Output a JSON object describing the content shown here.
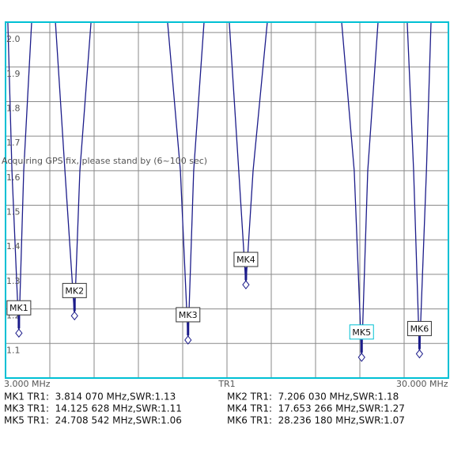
{
  "chart_data": {
    "type": "line",
    "xlim": [
      3,
      30
    ],
    "ylim": [
      1.0,
      2.03
    ],
    "xticks": [
      {
        "value": 3,
        "label": "3.000 MHz"
      },
      {
        "value": 30,
        "label": "30.000 MHz"
      }
    ],
    "xgrid": [
      3,
      5.7,
      8.4,
      11.1,
      13.8,
      16.5,
      19.2,
      21.9,
      24.6,
      27.3,
      30
    ],
    "yticks": [
      1.1,
      1.2,
      1.3,
      1.4,
      1.5,
      1.6,
      1.7,
      1.8,
      1.9,
      {
        "value": 2.0,
        "label": "2.0"
      }
    ],
    "grid": true,
    "trace_label": "TR1",
    "annotation": "Acquiring GPS fix, please stand by     (6~100 sec)",
    "curve": {
      "color": "#1c1c8a",
      "x": [
        3.14,
        3.39,
        3.814,
        4.11,
        4.59,
        null,
        6.04,
        6.62,
        7.206,
        7.53,
        8.21,
        null,
        12.88,
        13.66,
        14.126,
        14.47,
        15.1,
        null,
        16.64,
        17.22,
        17.653,
        18.09,
        18.96,
        null,
        23.49,
        24.26,
        24.709,
        25.08,
        25.71,
        null,
        27.49,
        27.88,
        28.236,
        28.66,
        28.94
      ],
      "values": [
        2.03,
        1.6,
        1.13,
        1.6,
        2.03,
        null,
        2.03,
        1.6,
        1.18,
        1.6,
        2.03,
        null,
        2.03,
        1.6,
        1.11,
        1.6,
        2.03,
        null,
        2.03,
        1.6,
        1.27,
        1.6,
        2.03,
        null,
        2.03,
        1.6,
        1.06,
        1.6,
        2.03,
        null,
        2.03,
        1.6,
        1.07,
        1.6,
        2.03
      ]
    },
    "markers": [
      {
        "name": "MK1",
        "freq": 3.81407,
        "swr": 1.13,
        "readout": "MK1 TR1:  3.814 070 MHz,SWR:1.13"
      },
      {
        "name": "MK2",
        "freq": 7.20603,
        "swr": 1.18,
        "readout": "MK2 TR1:  7.206 030 MHz,SWR:1.18"
      },
      {
        "name": "MK3",
        "freq": 14.125628,
        "swr": 1.11,
        "readout": "MK3 TR1:  14.125 628 MHz,SWR:1.11"
      },
      {
        "name": "MK4",
        "freq": 17.653266,
        "swr": 1.27,
        "readout": "MK4 TR1:  17.653 266 MHz,SWR:1.27"
      },
      {
        "name": "MK5",
        "freq": 24.708542,
        "swr": 1.06,
        "readout": "MK5 TR1:  24.708 542 MHz,SWR:1.06",
        "active": true
      },
      {
        "name": "MK6",
        "freq": 28.23618,
        "swr": 1.07,
        "readout": "MK6 TR1:  28.236 180 MHz,SWR:1.07"
      }
    ]
  }
}
